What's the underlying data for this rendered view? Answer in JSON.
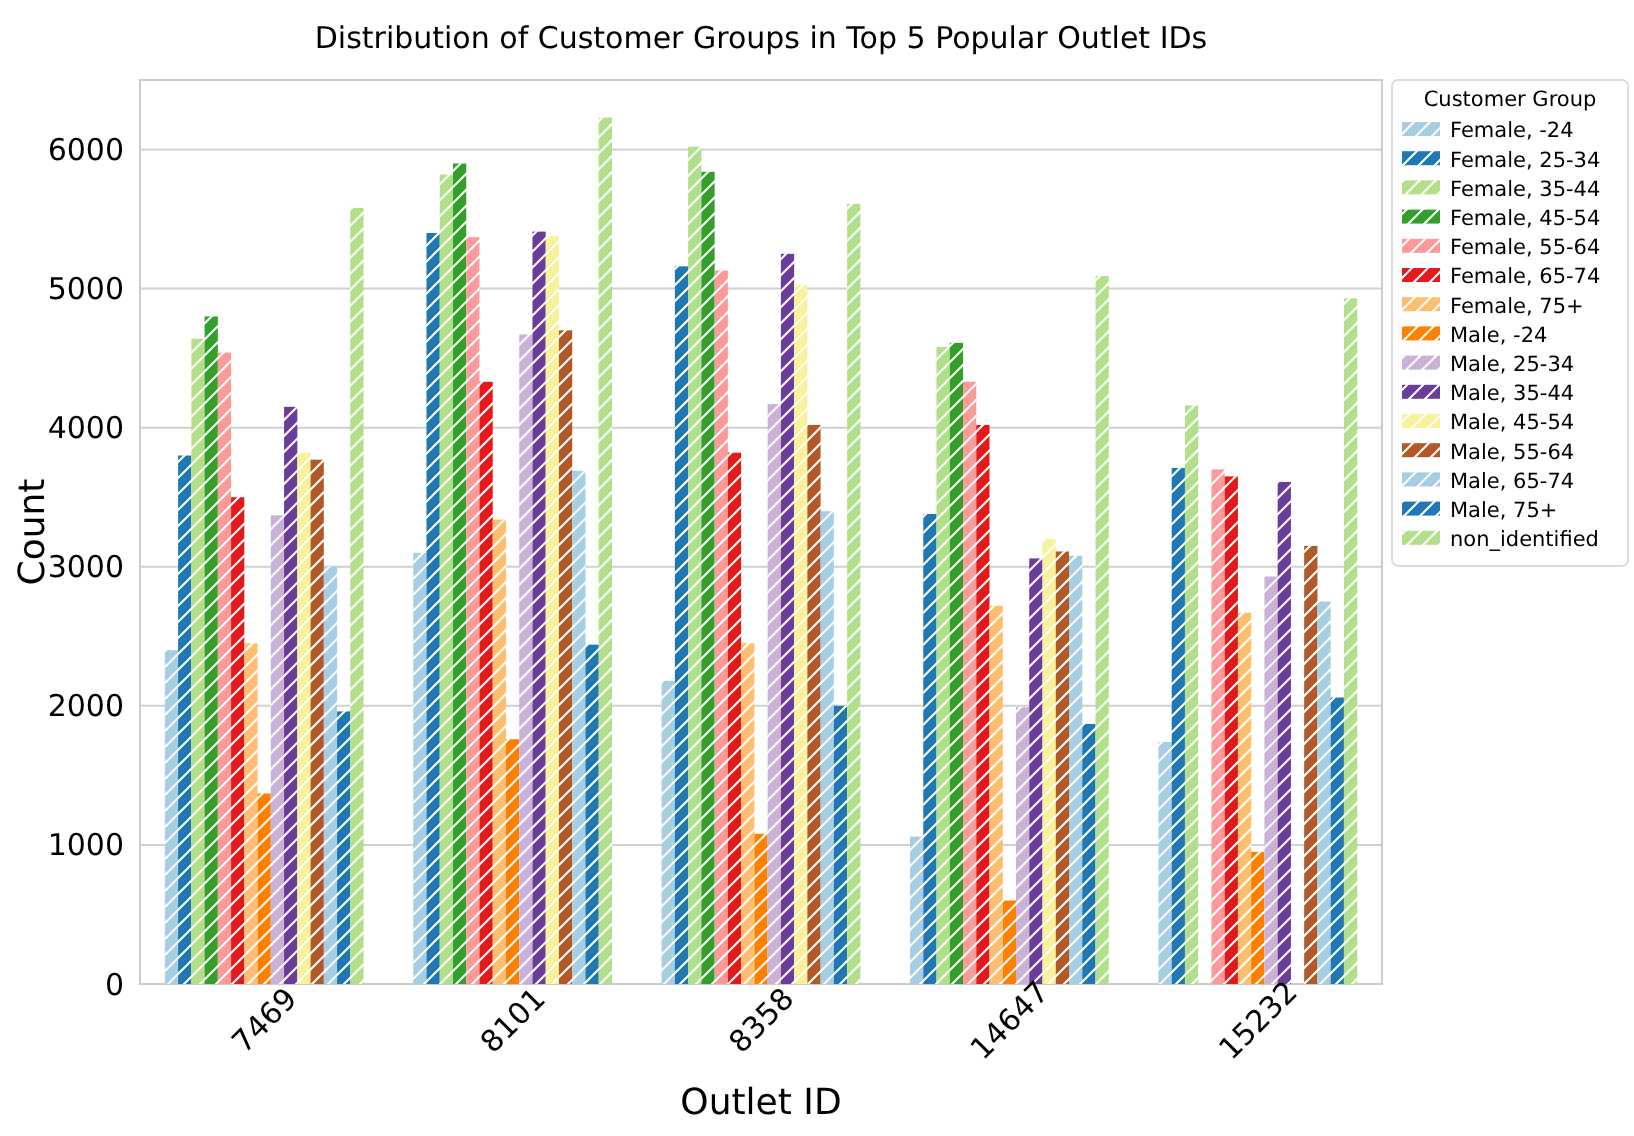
{
  "chart_data": {
    "type": "bar",
    "title": "Distribution of Customer Groups in Top 5 Popular Outlet IDs",
    "xlabel": "Outlet ID",
    "ylabel": "Count",
    "legend_title": "Customer Group",
    "legend": "right",
    "grid": "y",
    "categories": [
      "7469",
      "8101",
      "8358",
      "14647",
      "15232"
    ],
    "ylim": [
      0,
      6500
    ],
    "yticks": [
      0,
      1000,
      2000,
      3000,
      4000,
      5000,
      6000
    ],
    "series": [
      {
        "name": "Female, -24",
        "color": "#a6cee3",
        "values": [
          2400,
          3100,
          2180,
          1060,
          1740
        ]
      },
      {
        "name": "Female, 25-34",
        "color": "#1f78b4",
        "values": [
          3800,
          5400,
          5160,
          3380,
          3710
        ]
      },
      {
        "name": "Female, 35-44",
        "color": "#b2df8a",
        "values": [
          4640,
          5820,
          6020,
          4580,
          4160
        ]
      },
      {
        "name": "Female, 45-54",
        "color": "#33a02c",
        "values": [
          4800,
          5900,
          5840,
          4610,
          null
        ]
      },
      {
        "name": "Female, 55-64",
        "color": "#fb9a99",
        "values": [
          4540,
          5370,
          5130,
          4330,
          3700
        ]
      },
      {
        "name": "Female, 65-74",
        "color": "#e31a1c",
        "values": [
          3500,
          4330,
          3820,
          4020,
          3650
        ]
      },
      {
        "name": "Female, 75+",
        "color": "#fdbf6f",
        "values": [
          2450,
          3340,
          2450,
          2720,
          2670
        ]
      },
      {
        "name": "Male, -24",
        "color": "#ff7f00",
        "values": [
          1370,
          1760,
          1080,
          600,
          950
        ]
      },
      {
        "name": "Male, 25-34",
        "color": "#cab2d6",
        "values": [
          3370,
          4670,
          4170,
          1990,
          2930
        ]
      },
      {
        "name": "Male, 35-44",
        "color": "#6a3d9a",
        "values": [
          4150,
          5410,
          5250,
          3060,
          3610
        ]
      },
      {
        "name": "Male, 45-54",
        "color": "#f7f29b",
        "values": [
          3820,
          5380,
          5030,
          3200,
          null
        ]
      },
      {
        "name": "Male, 55-64",
        "color": "#b15928",
        "values": [
          3770,
          4700,
          4020,
          3110,
          3150
        ]
      },
      {
        "name": "Male, 65-74",
        "color": "#a6cee3",
        "values": [
          3000,
          3690,
          3400,
          3080,
          2750
        ]
      },
      {
        "name": "Male, 75+",
        "color": "#1f78b4",
        "values": [
          1960,
          2440,
          2000,
          1870,
          2060
        ]
      },
      {
        "name": "non_identified",
        "color": "#b2df8a",
        "values": [
          5580,
          6230,
          5610,
          5090,
          4930
        ]
      }
    ]
  }
}
